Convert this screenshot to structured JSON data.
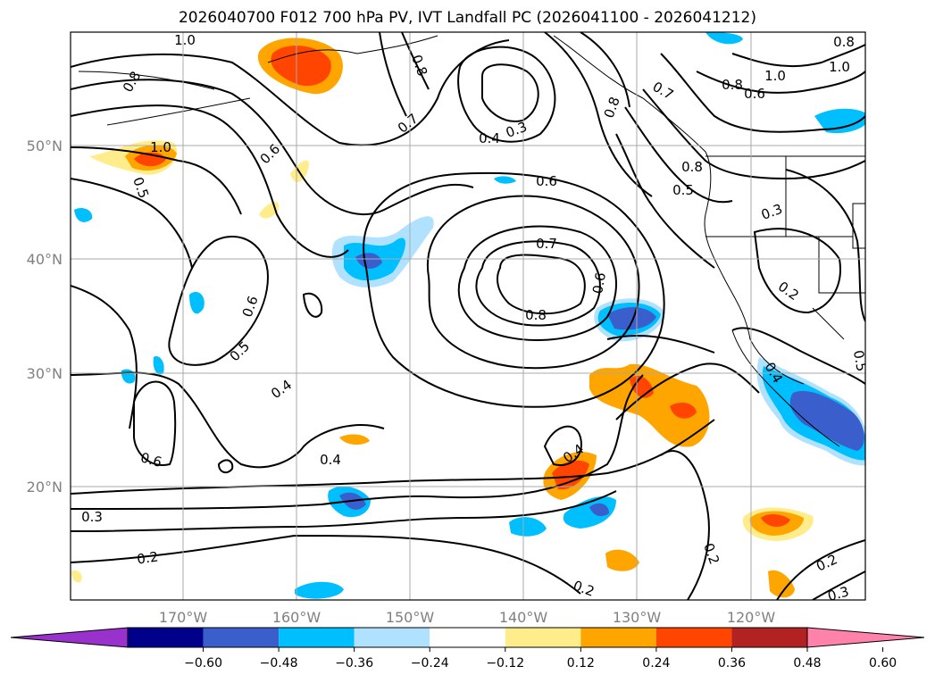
{
  "title": "2026040700 F012 700 hPa PV, IVT Landfall PC (2026041100 - 2026041212)",
  "axes": {
    "lat_labels": [
      "50°N",
      "40°N",
      "30°N",
      "20°N"
    ],
    "lon_labels": [
      "170°W",
      "160°W",
      "150°W",
      "140°W",
      "130°W",
      "120°W"
    ]
  },
  "contour_labels": [
    "1.0",
    "0.8",
    "0.8",
    "1.0",
    "0.6",
    "0.7",
    "0.8",
    "0.4",
    "0.3",
    "0.6",
    "0.7",
    "0.8",
    "0.6",
    "0.8",
    "0.7",
    "0.8",
    "1.0",
    "0.6",
    "0.8",
    "0.5",
    "1.0",
    "0.5",
    "0.3",
    "0.2",
    "0.6",
    "0.5",
    "0.4",
    "0.6",
    "0.4",
    "0.4",
    "0.3",
    "0.2",
    "0.2",
    "0.2",
    "0.2",
    "0.3",
    "0.4",
    "0.5"
  ],
  "colorbar": {
    "tick_labels": [
      "−0.60",
      "−0.48",
      "−0.36",
      "−0.24",
      "−0.12",
      "0.12",
      "0.24",
      "0.36",
      "0.48",
      "0.60"
    ],
    "colors": [
      "#9932cc",
      "#00008b",
      "#3a5fcd",
      "#00bfff",
      "#b0e2ff",
      "#ffffff",
      "#ffec8b",
      "#ffa500",
      "#ff4500",
      "#b22222",
      "#ff82ab"
    ]
  }
}
